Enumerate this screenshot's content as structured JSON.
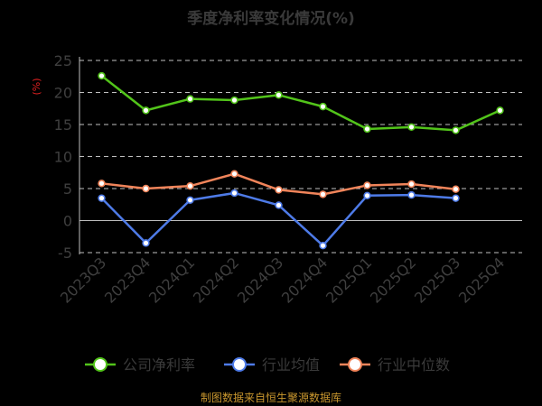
{
  "chart_data": {
    "type": "line",
    "title": "季度净利率变化情况(%)",
    "ylabel": "(%)",
    "categories": [
      "2023Q3",
      "2023Q4",
      "2024Q1",
      "2024Q2",
      "2024Q3",
      "2024Q4",
      "2025Q1",
      "2025Q2",
      "2025Q3",
      "2025Q4"
    ],
    "ylim": [
      -5,
      25
    ],
    "yticks": [
      "25",
      "20",
      "15",
      "10",
      "5",
      "0",
      "-5"
    ],
    "grid": true,
    "legend_position": "bottom",
    "series": [
      {
        "name": "公司净利率",
        "color": "#52c41a",
        "values": [
          22.6,
          17.2,
          19.0,
          18.8,
          19.6,
          17.8,
          14.3,
          14.6,
          14.1,
          17.2
        ]
      },
      {
        "name": "行业均值",
        "color": "#4e7be8",
        "values": [
          3.5,
          -3.5,
          3.2,
          4.3,
          2.4,
          -3.9,
          3.9,
          4.0,
          3.5,
          null
        ]
      },
      {
        "name": "行业中位数",
        "color": "#f0845a",
        "values": [
          5.8,
          5.0,
          5.4,
          7.3,
          4.8,
          4.1,
          5.5,
          5.7,
          4.9,
          null
        ]
      }
    ]
  },
  "source_note": "制图数据来自恒生聚源数据库"
}
